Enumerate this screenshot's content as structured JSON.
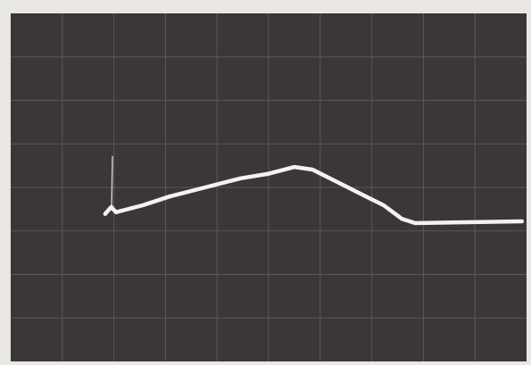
{
  "chart_data": {
    "type": "line",
    "x": [
      1.83,
      1.95,
      2.04,
      2.56,
      3.08,
      3.77,
      4.46,
      4.98,
      5.5,
      5.85,
      6.37,
      6.89,
      7.23,
      7.58,
      7.84,
      9.91
    ],
    "series": [
      {
        "color": "#f4f2ee",
        "values": [
          3.39,
          3.55,
          3.43,
          3.59,
          3.79,
          4.0,
          4.21,
          4.31,
          4.47,
          4.41,
          4.1,
          3.79,
          3.59,
          3.28,
          3.18,
          3.22
        ]
      }
    ],
    "xlim": [
      0,
      10
    ],
    "ylim": [
      0,
      8
    ]
  }
}
